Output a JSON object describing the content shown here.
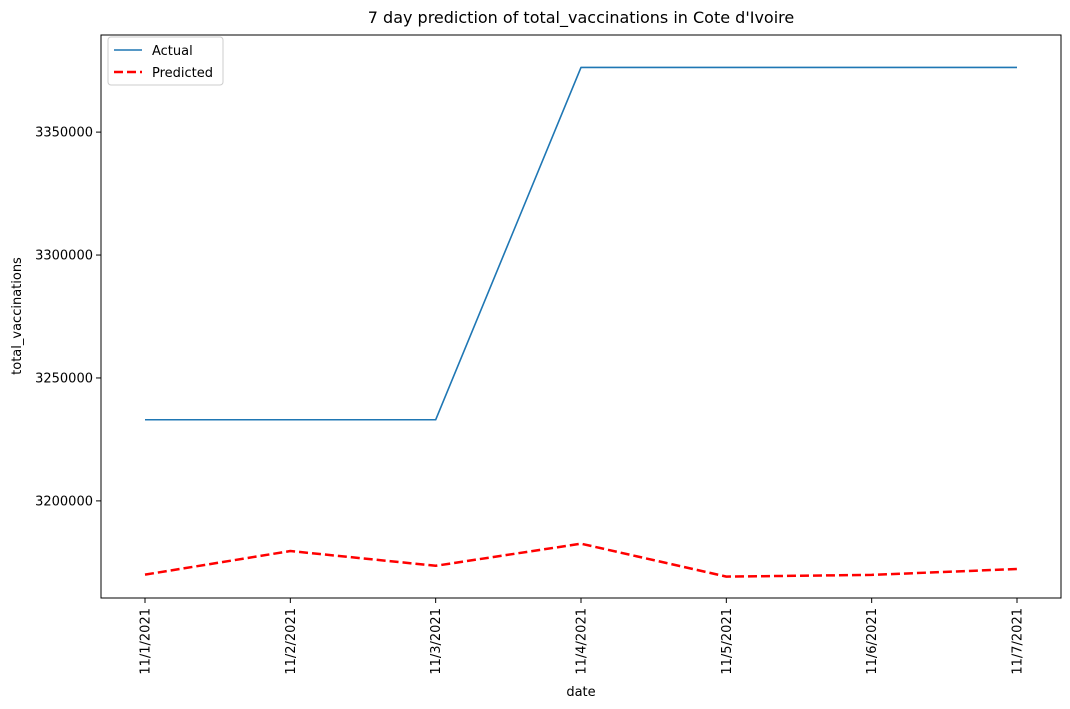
{
  "chart_data": {
    "type": "line",
    "title": "7 day prediction of total_vaccinations in Cote d'Ivoire",
    "xlabel": "date",
    "ylabel": "total_vaccinations",
    "categories": [
      "11/1/2021",
      "11/2/2021",
      "11/3/2021",
      "11/4/2021",
      "11/5/2021",
      "11/6/2021",
      "11/7/2021"
    ],
    "ylim": [
      3160500,
      3389500
    ],
    "yticks": [
      3200000,
      3250000,
      3300000,
      3350000
    ],
    "ytick_labels": [
      "3200000",
      "3250000",
      "3300000",
      "3350000"
    ],
    "grid": false,
    "legend_position": "top-left",
    "series": [
      {
        "name": "Actual",
        "color": "#1f77b4",
        "style": "solid",
        "values": [
          3233000,
          3233000,
          3233000,
          3376300,
          3376300,
          3376300,
          3376300
        ]
      },
      {
        "name": "Predicted",
        "color": "#ff0000",
        "style": "dashed",
        "values": [
          3170000,
          3179600,
          3173600,
          3182600,
          3169200,
          3169900,
          3172300
        ]
      }
    ]
  }
}
